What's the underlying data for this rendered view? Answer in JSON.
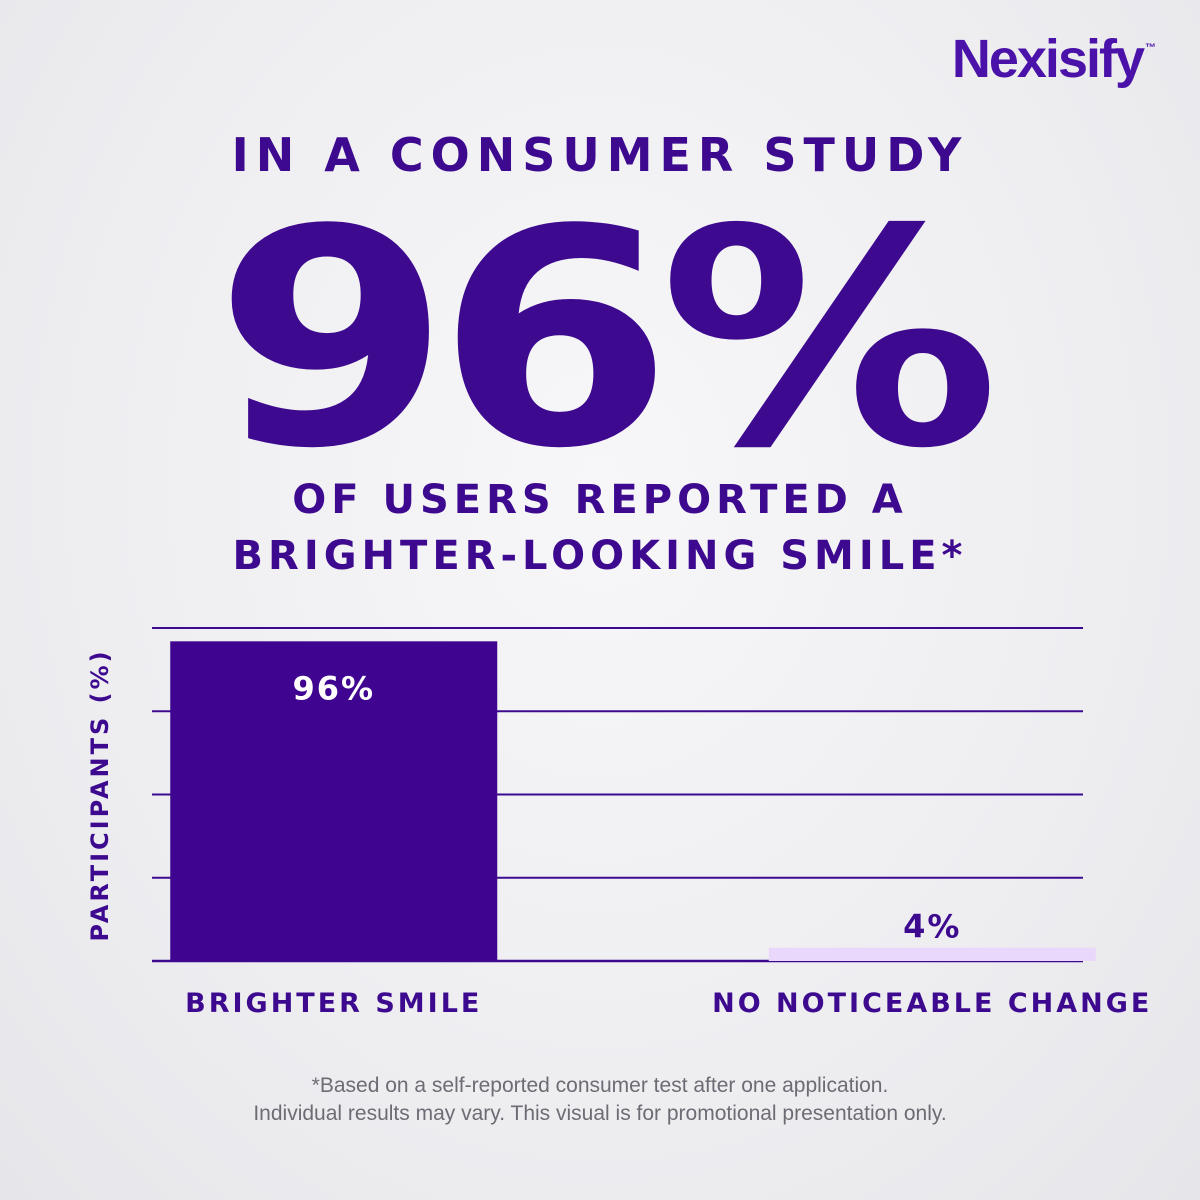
{
  "brand": {
    "name": "Nexisify",
    "trademark": "™"
  },
  "headline": {
    "top": "IN A CONSUMER STUDY",
    "stat": "96%",
    "sub_line1": "OF USERS REPORTED A",
    "sub_line2": "BRIGHTER-LOOKING SMILE*"
  },
  "chart_data": {
    "type": "bar",
    "categories": [
      "BRIGHTER SMILE",
      "NO NOTICEABLE CHANGE"
    ],
    "values": [
      96,
      4
    ],
    "value_labels": [
      "96%",
      "4%"
    ],
    "ylabel": "PARTICIPANTS (%)",
    "xlabel": "",
    "ylim": [
      0,
      100
    ],
    "grid": true,
    "colors": [
      "#3f0591",
      "#e9d8fb"
    ],
    "value_label_colors": [
      "#ffffff",
      "#3d0a8f"
    ],
    "gridline_color": "#3d0a8f"
  },
  "footnote": {
    "line1": "*Based on a self-reported consumer test after one application.",
    "line2": "Individual results may vary. This visual is for promotional presentation only."
  }
}
